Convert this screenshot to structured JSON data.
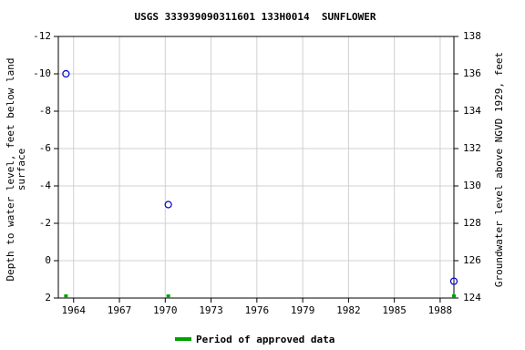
{
  "chart_data": {
    "type": "scatter",
    "title": "USGS 333939090311601 133H0014  SUNFLOWER",
    "ylabel": [
      "Depth to water level, feet below land",
      "surface"
    ],
    "y2label": "Groundwater level above NGVD 1929, feet",
    "xlim": [
      1963,
      1988.9
    ],
    "xticks": [
      1964,
      1967,
      1970,
      1973,
      1976,
      1979,
      1982,
      1985,
      1988
    ],
    "ylim": [
      -12,
      2
    ],
    "yticks": [
      -12,
      -10,
      -8,
      -6,
      -4,
      -2,
      0,
      2
    ],
    "y_inverted": true,
    "y2lim": [
      124,
      138
    ],
    "y2ticks": [
      124,
      126,
      128,
      130,
      132,
      134,
      136,
      138
    ],
    "grid": true,
    "series": [
      {
        "x": [
          1963.5,
          1970.2,
          1988.9
        ],
        "values": [
          -10,
          -3,
          1.1
        ],
        "color": "#0000cc"
      }
    ],
    "approved": {
      "name": "Period of approved data",
      "color": "#00a000",
      "x": [
        1963.5,
        1970.2,
        1988.9
      ]
    }
  }
}
